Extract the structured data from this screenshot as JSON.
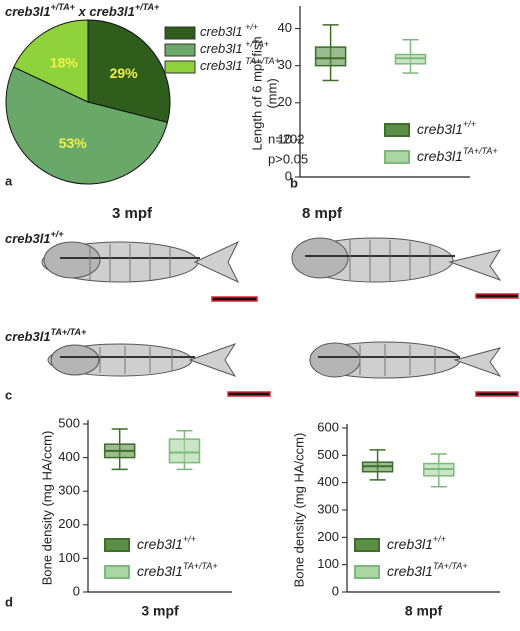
{
  "panel_labels": [
    "a",
    "b",
    "c",
    "d"
  ],
  "images": {
    "columns": [
      "3 mpf",
      "8 mpf"
    ],
    "rows": [
      {
        "name": "creb3l1",
        "sup": "+/+"
      },
      {
        "name": "creb3l1",
        "sup": "TA+/TA+"
      }
    ]
  },
  "chart_data": [
    {
      "type": "pie",
      "title_parts": [
        {
          "text": "creb3l1",
          "sup": "+/TA+"
        },
        {
          "text": " x creb3l1",
          "sup": "+/TA+"
        }
      ],
      "labels": [
        {
          "name": "creb3l1",
          "sup": " +/+"
        },
        {
          "name": "creb3l1",
          "sup": " +/TA+"
        },
        {
          "name": "creb3l1",
          "sup": " TA+/TA+"
        }
      ],
      "values": [
        29,
        53,
        18
      ],
      "value_labels": [
        "29%",
        "53%",
        "18%"
      ],
      "colors": [
        "#2f5e1c",
        "#6aa86a",
        "#8fd23c"
      ],
      "label_color": "#f2f24a",
      "annotations": [
        "n=202",
        "p>0.05"
      ]
    },
    {
      "type": "box",
      "ylabel": [
        "Length of 6 mpf fish",
        "(mm)"
      ],
      "ylim": [
        0,
        45
      ],
      "yticks": [
        0,
        10,
        20,
        30,
        40
      ],
      "series": [
        {
          "name": "creb3l1",
          "sup": "+/+",
          "color": "#3d6e2a",
          "fill": "#5a8f45",
          "min": 26,
          "q1": 30,
          "median": 32,
          "q3": 35,
          "max": 41
        },
        {
          "name": "creb3l1",
          "sup": "TA+/TA+",
          "color": "#7db87d",
          "fill": "#a9d6a2",
          "min": 28,
          "q1": 30.5,
          "median": 32,
          "q3": 33,
          "max": 37
        }
      ]
    },
    {
      "type": "box",
      "ylabel": [
        "Bone density (mg HA/ccm)"
      ],
      "xlabel": "3 mpf",
      "ylim": [
        0,
        500
      ],
      "yticks": [
        0,
        100,
        200,
        300,
        400,
        500
      ],
      "series": [
        {
          "name": "creb3l1",
          "sup": "+/+",
          "color": "#3d6e2a",
          "fill": "#5a8f45",
          "min": 365,
          "q1": 400,
          "median": 420,
          "q3": 440,
          "max": 485
        },
        {
          "name": "creb3l1",
          "sup": "TA+/TA+",
          "color": "#7db87d",
          "fill": "#a9d6a2",
          "min": 365,
          "q1": 385,
          "median": 415,
          "q3": 455,
          "max": 480
        }
      ]
    },
    {
      "type": "box",
      "ylabel": [
        "Bone density (mg HA/ccm)"
      ],
      "xlabel": "8 mpf",
      "ylim": [
        0,
        600
      ],
      "yticks": [
        0,
        100,
        200,
        300,
        400,
        500,
        600
      ],
      "series": [
        {
          "name": "creb3l1",
          "sup": "+/+",
          "color": "#3d6e2a",
          "fill": "#5a8f45",
          "min": 410,
          "q1": 440,
          "median": 460,
          "q3": 475,
          "max": 520
        },
        {
          "name": "creb3l1",
          "sup": "TA+/TA+",
          "color": "#7db87d",
          "fill": "#a9d6a2",
          "min": 385,
          "q1": 425,
          "median": 450,
          "q3": 470,
          "max": 505
        }
      ]
    }
  ]
}
